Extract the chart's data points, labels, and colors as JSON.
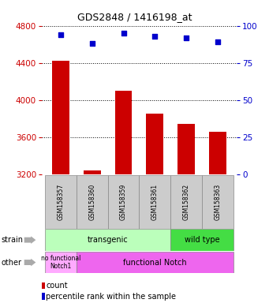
{
  "title": "GDS2848 / 1416198_at",
  "samples": [
    "GSM158357",
    "GSM158360",
    "GSM158359",
    "GSM158361",
    "GSM158362",
    "GSM158363"
  ],
  "bar_values": [
    4420,
    3240,
    4100,
    3850,
    3740,
    3660
  ],
  "percentile_values": [
    94,
    88,
    95,
    93,
    92,
    89
  ],
  "ylim_left": [
    3200,
    4800
  ],
  "ylim_right": [
    0,
    100
  ],
  "yticks_left": [
    3200,
    3600,
    4000,
    4400,
    4800
  ],
  "yticks_right": [
    0,
    25,
    50,
    75,
    100
  ],
  "bar_color": "#cc0000",
  "dot_color": "#0000cc",
  "bar_width": 0.55,
  "strain_transgenic_color": "#bbffbb",
  "strain_wildtype_color": "#44dd44",
  "other_nofunc_color": "#ffaaff",
  "other_func_color": "#ee66ee",
  "row_label_strain": "strain",
  "row_label_other": "other",
  "legend_count_color": "#cc0000",
  "legend_pct_color": "#0000cc",
  "legend_count_text": "count",
  "legend_pct_text": "percentile rank within the sample",
  "left_tick_color": "#cc0000",
  "right_tick_color": "#0000cc",
  "background_color": "#ffffff",
  "xticklabels_bg": "#cccccc",
  "title_fontsize": 9
}
